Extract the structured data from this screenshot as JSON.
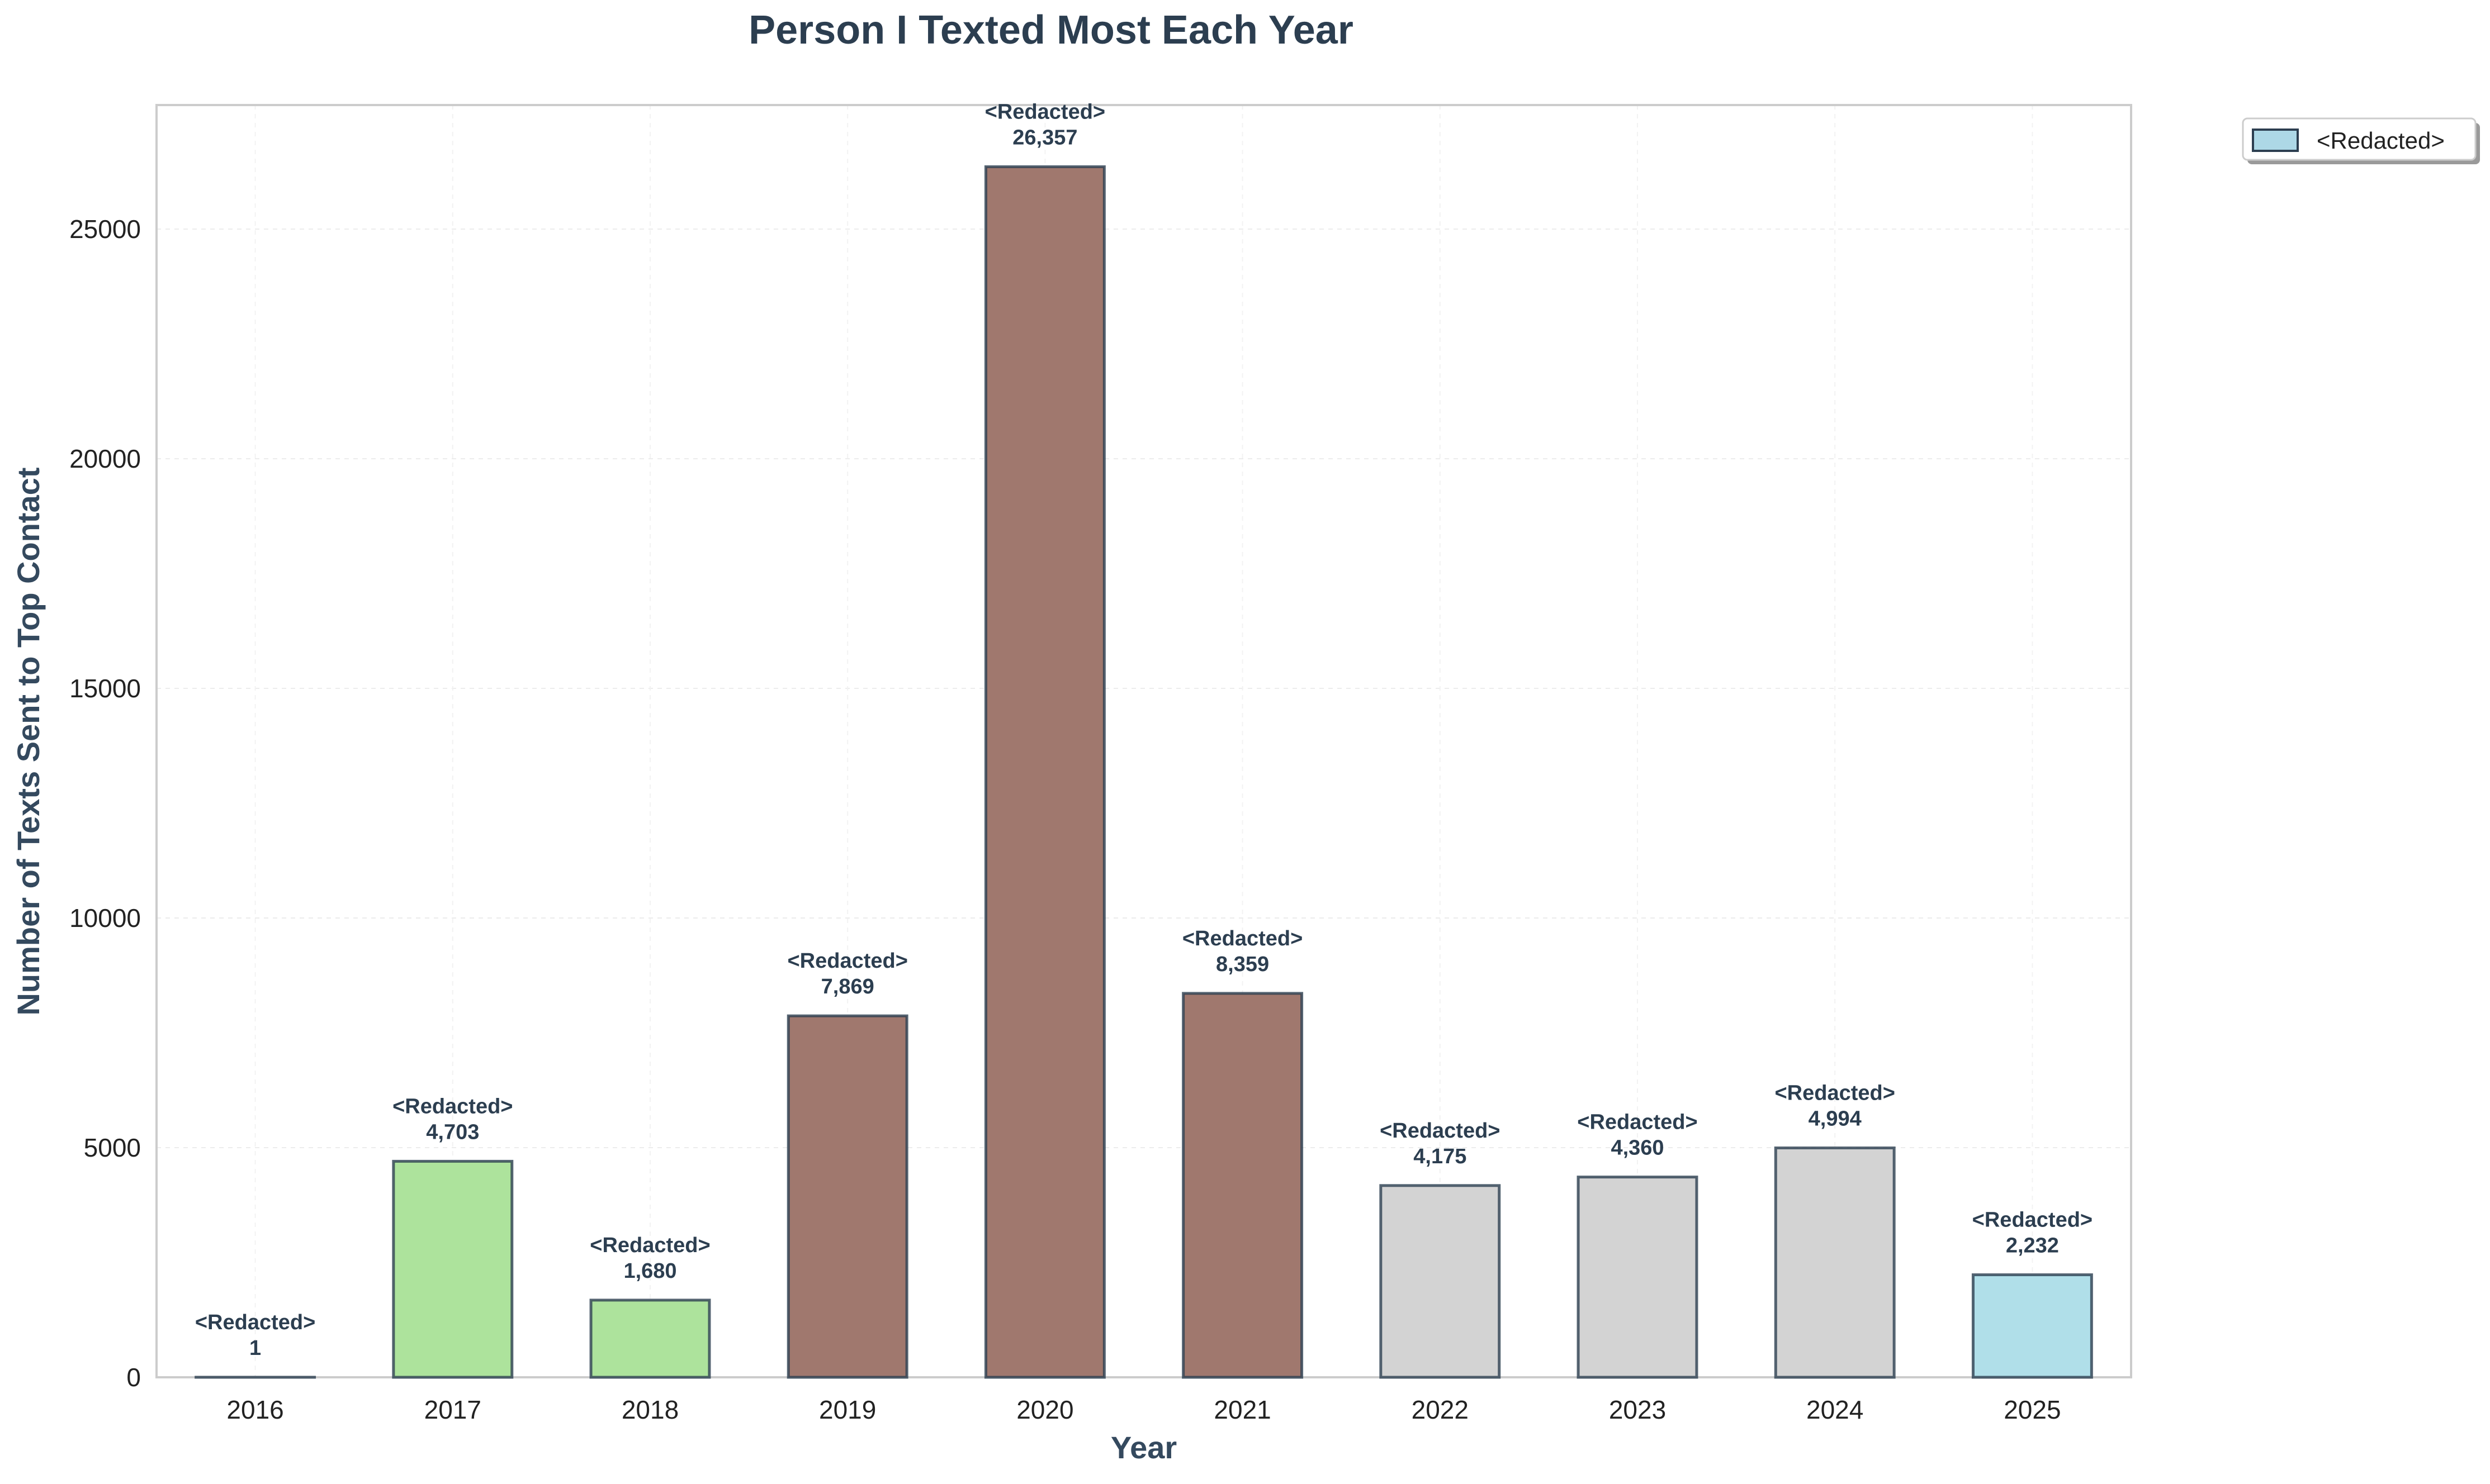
{
  "chart_data": {
    "type": "bar",
    "title": "Person I Texted Most Each Year",
    "xlabel": "Year",
    "ylabel": "Number of Texts Sent to Top Contact",
    "categories": [
      "2016",
      "2017",
      "2018",
      "2019",
      "2020",
      "2021",
      "2022",
      "2023",
      "2024",
      "2025"
    ],
    "values": [
      1,
      4703,
      1680,
      7869,
      26357,
      8359,
      4175,
      4360,
      4994,
      2232
    ],
    "value_labels": [
      "1",
      "4,703",
      "1,680",
      "7,869",
      "26,357",
      "8,359",
      "4,175",
      "4,360",
      "4,994",
      "2,232"
    ],
    "bar_names": [
      "<Redacted>",
      "<Redacted>",
      "<Redacted>",
      "<Redacted>",
      "<Redacted>",
      "<Redacted>",
      "<Redacted>",
      "<Redacted>",
      "<Redacted>",
      "<Redacted>"
    ],
    "bar_colors": [
      "#add8e6",
      "#ade39c",
      "#ade39c",
      "#a0786e",
      "#a0786e",
      "#a0786e",
      "#d3d3d3",
      "#d3d3d3",
      "#d3d3d3",
      "#b0dfe9"
    ],
    "bar_edge_color": "#2c3e50",
    "ylim": [
      0,
      27700
    ],
    "yticks": [
      0,
      5000,
      10000,
      15000,
      20000,
      25000
    ],
    "grid": true,
    "legend_position": "outside-top-right",
    "legend": [
      {
        "name": "<Redacted>",
        "color": "#add8e6"
      }
    ]
  }
}
